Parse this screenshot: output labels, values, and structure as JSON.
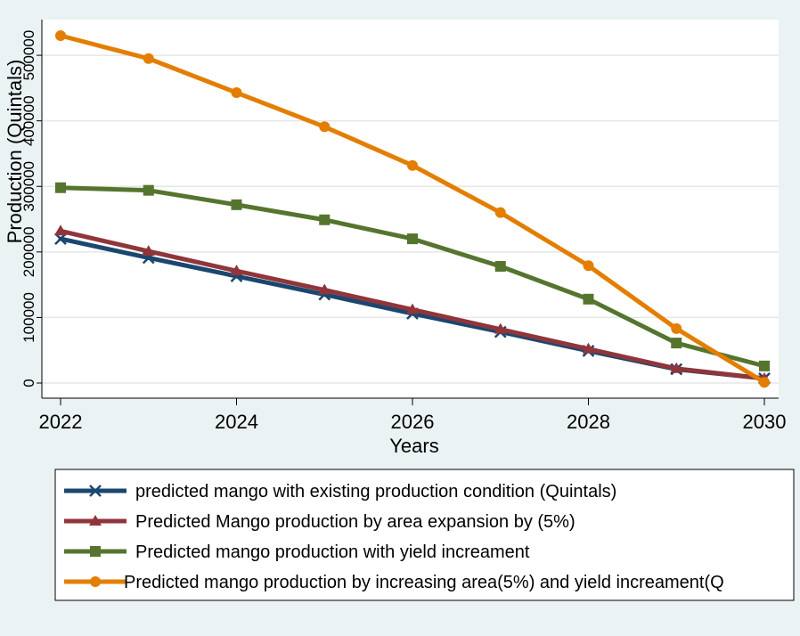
{
  "chart_data": {
    "type": "line",
    "xlabel": "Years",
    "ylabel": "Production (Quintals)",
    "xlim": [
      2022,
      2030
    ],
    "ylim": [
      0,
      530000
    ],
    "x_ticks": [
      "2022",
      "2024",
      "2026",
      "2028",
      "2030"
    ],
    "y_ticks": [
      "0",
      "100000",
      "200000",
      "300000",
      "400000",
      "500000"
    ],
    "x": [
      2022,
      2023,
      2024,
      2025,
      2026,
      2027,
      2028,
      2029,
      2030
    ],
    "grid": true,
    "legend_position": "bottom",
    "series": [
      {
        "name": "predicted mango with existing production condition (Quintals)",
        "color": "#1a476f",
        "marker": "x",
        "values": [
          220000,
          191000,
          163000,
          135000,
          106000,
          78000,
          49000,
          21000,
          7000
        ]
      },
      {
        "name": "Predicted Mango production by area expansion by (5%)",
        "color": "#90353b",
        "marker": "triangle",
        "values": [
          232000,
          201000,
          171000,
          142000,
          112000,
          82000,
          52000,
          22000,
          7000
        ]
      },
      {
        "name": "Predicted mango production with yield increament",
        "color": "#55752f",
        "marker": "square",
        "values": [
          298000,
          294000,
          272000,
          249000,
          220000,
          178000,
          128000,
          61000,
          26000
        ]
      },
      {
        "name": "Predicted mango production by increasing area(5%) and yield increament(Q",
        "color": "#e37e00",
        "marker": "circle",
        "values": [
          530000,
          495000,
          443000,
          391000,
          332000,
          260000,
          179000,
          83000,
          1000
        ]
      }
    ]
  }
}
